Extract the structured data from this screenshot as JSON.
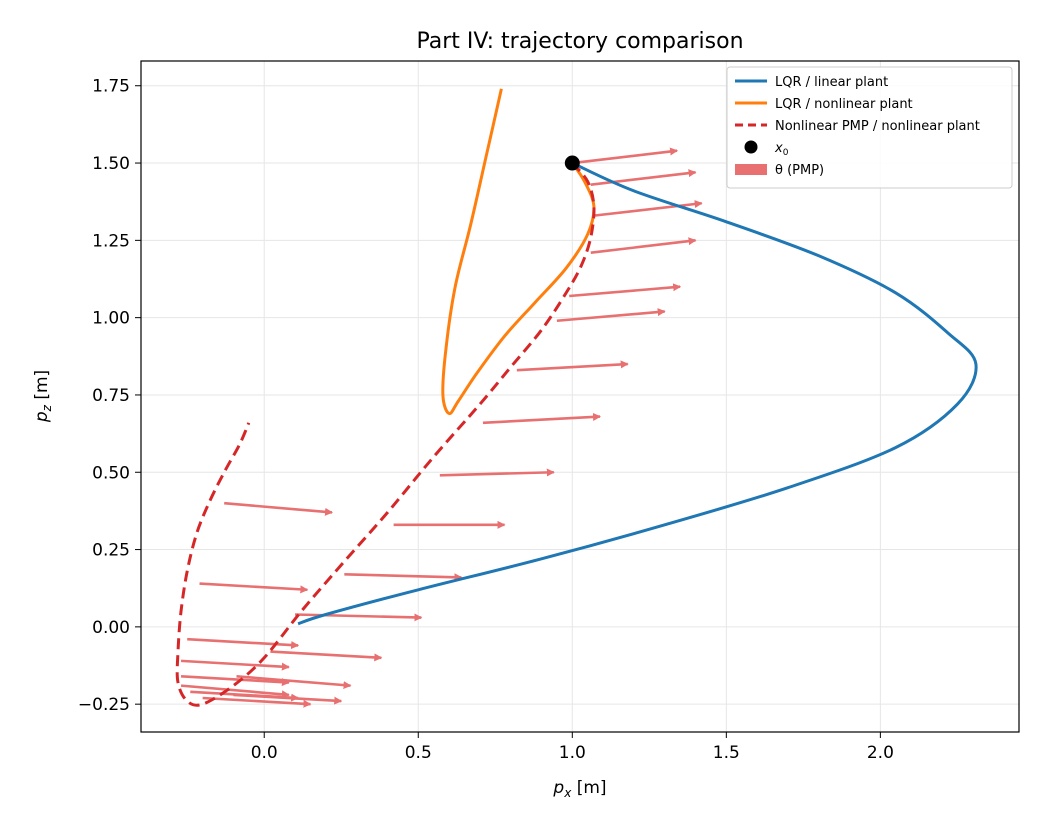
{
  "chart_data": {
    "type": "line",
    "title": "Part IV: trajectory comparison",
    "xlabel": "p_x [m]",
    "ylabel": "p_z [m]",
    "xlim": [
      -0.4,
      2.45
    ],
    "ylim": [
      -0.34,
      1.83
    ],
    "xticks": [
      0.0,
      0.5,
      1.0,
      1.5,
      2.0
    ],
    "yticks": [
      -0.25,
      0.0,
      0.25,
      0.5,
      0.75,
      1.0,
      1.25,
      1.5,
      1.75
    ],
    "xtick_labels": [
      "0.0",
      "0.5",
      "1.0",
      "1.5",
      "2.0"
    ],
    "ytick_labels": [
      "−0.25",
      "0.00",
      "0.25",
      "0.50",
      "0.75",
      "1.00",
      "1.25",
      "1.50",
      "1.75"
    ],
    "grid": true,
    "legend_position": "top-right",
    "series": [
      {
        "name": "LQR / linear plant",
        "style": "solid",
        "color": "#1f77b4",
        "x": [
          1.0,
          1.2,
          1.5,
          1.8,
          2.05,
          2.22,
          2.31,
          2.25,
          2.05,
          1.7,
          1.3,
          0.9,
          0.5,
          0.2,
          0.11
        ],
        "y": [
          1.5,
          1.41,
          1.31,
          1.2,
          1.08,
          0.95,
          0.85,
          0.72,
          0.58,
          0.45,
          0.33,
          0.22,
          0.12,
          0.04,
          0.01
        ]
      },
      {
        "name": "LQR / nonlinear plant",
        "style": "solid",
        "color": "#ff7f0e",
        "x": [
          1.0,
          1.04,
          1.07,
          1.05,
          0.98,
          0.88,
          0.78,
          0.69,
          0.63,
          0.6,
          0.58,
          0.59,
          0.62,
          0.67,
          0.72,
          0.77
        ],
        "y": [
          1.5,
          1.44,
          1.36,
          1.27,
          1.16,
          1.05,
          0.94,
          0.82,
          0.73,
          0.69,
          0.75,
          0.9,
          1.1,
          1.3,
          1.52,
          1.74
        ]
      },
      {
        "name": "Nonlinear PMP / nonlinear plant",
        "style": "dashed",
        "color": "#d62728",
        "x": [
          1.0,
          1.05,
          1.07,
          1.06,
          1.03,
          0.98,
          0.9,
          0.8,
          0.7,
          0.55,
          0.4,
          0.25,
          0.12,
          0.0,
          -0.1,
          -0.2,
          -0.25,
          -0.28,
          -0.28,
          -0.27,
          -0.25,
          -0.22,
          -0.18,
          -0.13,
          -0.08,
          -0.05
        ],
        "y": [
          1.5,
          1.44,
          1.36,
          1.26,
          1.17,
          1.08,
          0.96,
          0.84,
          0.72,
          0.55,
          0.37,
          0.2,
          0.05,
          -0.1,
          -0.19,
          -0.25,
          -0.24,
          -0.18,
          -0.08,
          0.05,
          0.18,
          0.3,
          0.4,
          0.5,
          0.59,
          0.66
        ]
      }
    ],
    "x0": {
      "name": "x_0",
      "x": 1.0,
      "y": 1.5,
      "color": "#000000"
    },
    "theta_arrows": {
      "name": "θ (PMP)",
      "color": "#e87070",
      "arrows": [
        {
          "x": 1.0,
          "y": 1.5,
          "dx": 0.34,
          "dy": 0.04
        },
        {
          "x": 1.06,
          "y": 1.43,
          "dx": 0.34,
          "dy": 0.04
        },
        {
          "x": 1.07,
          "y": 1.33,
          "dx": 0.35,
          "dy": 0.04
        },
        {
          "x": 1.06,
          "y": 1.21,
          "dx": 0.34,
          "dy": 0.04
        },
        {
          "x": 0.99,
          "y": 1.07,
          "dx": 0.36,
          "dy": 0.03
        },
        {
          "x": 0.95,
          "y": 0.99,
          "dx": 0.35,
          "dy": 0.03
        },
        {
          "x": 0.82,
          "y": 0.83,
          "dx": 0.36,
          "dy": 0.02
        },
        {
          "x": 0.71,
          "y": 0.66,
          "dx": 0.38,
          "dy": 0.02
        },
        {
          "x": 0.57,
          "y": 0.49,
          "dx": 0.37,
          "dy": 0.01
        },
        {
          "x": 0.42,
          "y": 0.33,
          "dx": 0.36,
          "dy": 0.0
        },
        {
          "x": 0.26,
          "y": 0.17,
          "dx": 0.38,
          "dy": -0.01
        },
        {
          "x": 0.1,
          "y": 0.04,
          "dx": 0.41,
          "dy": -0.01
        },
        {
          "x": -0.13,
          "y": 0.4,
          "dx": 0.35,
          "dy": -0.03
        },
        {
          "x": -0.21,
          "y": 0.14,
          "dx": 0.35,
          "dy": -0.02
        },
        {
          "x": -0.25,
          "y": -0.04,
          "dx": 0.36,
          "dy": -0.02
        },
        {
          "x": 0.02,
          "y": -0.08,
          "dx": 0.36,
          "dy": -0.02
        },
        {
          "x": -0.27,
          "y": -0.11,
          "dx": 0.35,
          "dy": -0.02
        },
        {
          "x": -0.27,
          "y": -0.16,
          "dx": 0.35,
          "dy": -0.02
        },
        {
          "x": -0.27,
          "y": -0.19,
          "dx": 0.35,
          "dy": -0.03
        },
        {
          "x": -0.09,
          "y": -0.16,
          "dx": 0.37,
          "dy": -0.03
        },
        {
          "x": -0.24,
          "y": -0.21,
          "dx": 0.35,
          "dy": -0.02
        },
        {
          "x": -0.1,
          "y": -0.22,
          "dx": 0.35,
          "dy": -0.02
        },
        {
          "x": -0.2,
          "y": -0.23,
          "dx": 0.35,
          "dy": -0.02
        }
      ]
    }
  },
  "legend": {
    "items": [
      {
        "label": "LQR / linear plant",
        "kind": "line",
        "color": "#1f77b4"
      },
      {
        "label": "LQR / nonlinear plant",
        "kind": "line",
        "color": "#ff7f0e"
      },
      {
        "label": "Nonlinear PMP / nonlinear plant",
        "kind": "dashed",
        "color": "#d62728"
      },
      {
        "label": "x",
        "sub": "0",
        "kind": "marker",
        "color": "#000000"
      },
      {
        "label": "θ (PMP)",
        "kind": "patch",
        "color": "#e87070"
      }
    ]
  },
  "axis_text": {
    "xlabel_main": "p",
    "xlabel_sub": "x",
    "xlabel_unit": " [m]",
    "ylabel_main": "p",
    "ylabel_sub": "z",
    "ylabel_unit": " [m]"
  }
}
